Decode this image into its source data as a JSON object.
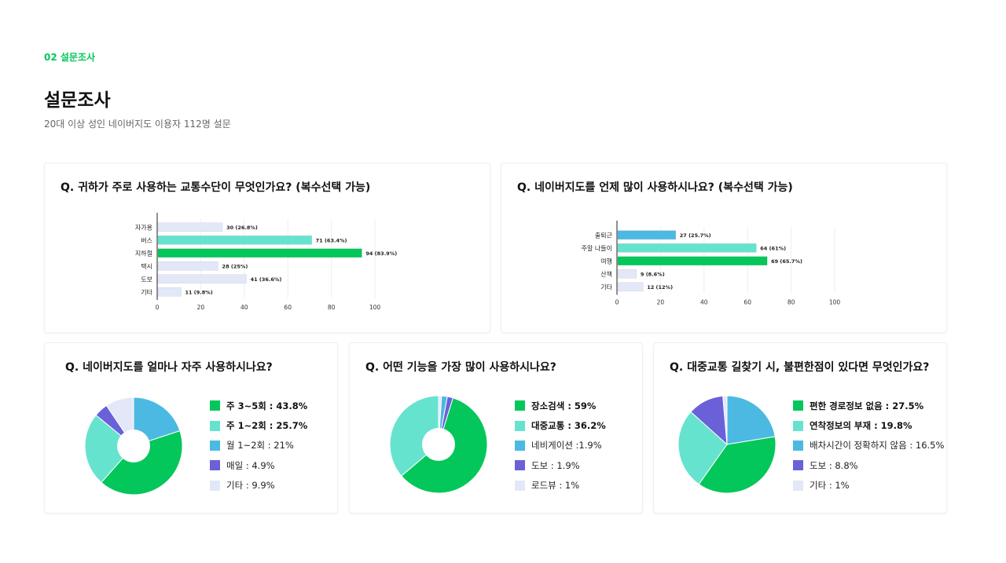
{
  "header": {
    "section_tag": "02 설문조사",
    "title": "설문조사",
    "subtitle": "20대 이상 성인 네이버지도 이용자 112명 설문"
  },
  "colors": {
    "green": "#03c75a",
    "mint": "#66e3cf",
    "sky": "#4cb9e2",
    "purple": "#6a61d9",
    "pale": "#e3e8f8",
    "card_border": "#eef0f2"
  },
  "cards": [
    {
      "title": "Q. 귀하가 주로 사용하는 교통수단이 무엇인가요? (복수선택 가능)"
    },
    {
      "title": "Q. 네이버지도를 언제 많이 사용하시나요? (복수선택 가능)"
    },
    {
      "title": "Q. 네이버지도를 얼마나 자주 사용하시나요?"
    },
    {
      "title": "Q. 어떤 기능을 가장 많이 사용하시나요?"
    },
    {
      "title": "Q. 대중교통 길찾기 시, 불편한점이 있다면 무엇인가요?"
    }
  ],
  "chart_data": [
    {
      "type": "bar",
      "orientation": "horizontal",
      "categories": [
        "자가용",
        "버스",
        "지하철",
        "택시",
        "도보",
        "기타"
      ],
      "values": [
        30,
        71,
        94,
        28,
        41,
        11
      ],
      "labels": [
        "30 (26.8%)",
        "71 (63.4%)",
        "94 (83.9%)",
        "28 (25%)",
        "41 (36.6%)",
        "11 (9.8%)"
      ],
      "colors": [
        "#e3e8f8",
        "#66e3cf",
        "#03c75a",
        "#e3e8f8",
        "#e3e8f8",
        "#e3e8f8"
      ],
      "xlim": [
        0,
        100
      ],
      "xticks": [
        "0",
        "20",
        "40",
        "60",
        "80",
        "100"
      ],
      "grid": true
    },
    {
      "type": "bar",
      "orientation": "horizontal",
      "categories": [
        "출퇴근",
        "주말 나들이",
        "여행",
        "산책",
        "기타"
      ],
      "values": [
        27,
        64,
        69,
        9,
        12
      ],
      "labels": [
        "27 (25.7%)",
        "64 (61%)",
        "69 (65.7%)",
        "9 (8.6%)",
        "12 (12%)"
      ],
      "colors": [
        "#4cb9e2",
        "#66e3cf",
        "#03c75a",
        "#e3e8f8",
        "#e3e8f8"
      ],
      "xlim": [
        0,
        100
      ],
      "xticks": [
        "0",
        "20",
        "40",
        "60",
        "80",
        "100"
      ],
      "grid": true
    },
    {
      "type": "pie",
      "donut": true,
      "slices": [
        {
          "label": "주 3~5회 : 43.8%",
          "value": 43.8,
          "color": "#03c75a",
          "bold": true
        },
        {
          "label": "주 1~2회 : 25.7%",
          "value": 25.7,
          "color": "#66e3cf",
          "bold": true
        },
        {
          "label": "월 1~2회 : 21%",
          "value": 21,
          "color": "#4cb9e2",
          "bold": false
        },
        {
          "label": "매일 : 4.9%",
          "value": 4.9,
          "color": "#6a61d9",
          "bold": false
        },
        {
          "label": "기타 :  9.9%",
          "value": 9.9,
          "color": "#e3e8f8",
          "bold": false
        }
      ],
      "draw_order": [
        2,
        0,
        1,
        3,
        4
      ]
    },
    {
      "type": "pie",
      "donut": true,
      "slices": [
        {
          "label": "장소검색 : 59%",
          "value": 59,
          "color": "#03c75a",
          "bold": true
        },
        {
          "label": "대중교통 : 36.2%",
          "value": 36.2,
          "color": "#66e3cf",
          "bold": true
        },
        {
          "label": "네비게이션 :1.9%",
          "value": 1.9,
          "color": "#4cb9e2",
          "bold": false
        },
        {
          "label": "도보 : 1.9%",
          "value": 1.9,
          "color": "#6a61d9",
          "bold": false
        },
        {
          "label": "로드뷰 : 1%",
          "value": 1,
          "color": "#e3e8f8",
          "bold": false
        }
      ],
      "draw_order": [
        4,
        2,
        3,
        0,
        1
      ]
    },
    {
      "type": "pie",
      "donut": false,
      "slices": [
        {
          "label": "편한 경로정보 없음 : 27.5%",
          "value": 27.5,
          "color": "#03c75a",
          "bold": true
        },
        {
          "label": "연착정보의 부재 : 19.8%",
          "value": 19.8,
          "color": "#66e3cf",
          "bold": true
        },
        {
          "label": "배차시간이 정확하지 않음 : 16.5%",
          "value": 16.5,
          "color": "#4cb9e2",
          "bold": false
        },
        {
          "label": "도보 : 8.8%",
          "value": 8.8,
          "color": "#6a61d9",
          "bold": false
        },
        {
          "label": "기타 : 1%",
          "value": 1,
          "color": "#e3e8f8",
          "bold": false
        }
      ],
      "draw_order": [
        2,
        0,
        1,
        3,
        4
      ]
    }
  ]
}
